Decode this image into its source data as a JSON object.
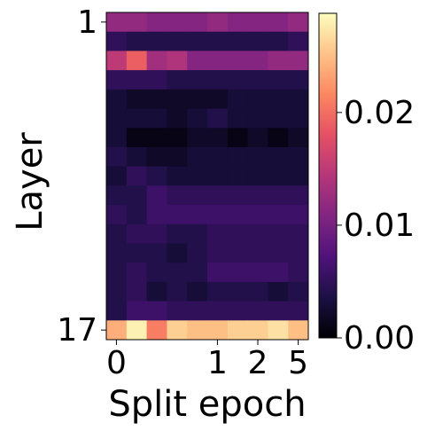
{
  "chart_data": {
    "type": "heatmap",
    "xlabel": "Split epoch",
    "ylabel": "Layer",
    "x_categories": [
      "0",
      null,
      null,
      null,
      null,
      "1",
      null,
      "2",
      null,
      "5"
    ],
    "y_categories": [
      "1",
      null,
      null,
      null,
      null,
      null,
      null,
      null,
      null,
      null,
      null,
      null,
      null,
      null,
      null,
      null,
      "17"
    ],
    "colormap": "magma",
    "zlim": [
      0,
      0.0288
    ],
    "zticks": [
      {
        "value": 0,
        "label": "0.00"
      },
      0.01,
      0.02
    ],
    "values": [
      [
        0.012,
        0.012,
        0.011,
        0.011,
        0.011,
        0.012,
        0.011,
        0.011,
        0.011,
        0.012
      ],
      [
        0.005,
        0.004,
        0.004,
        0.004,
        0.004,
        0.004,
        0.004,
        0.004,
        0.004,
        0.005
      ],
      [
        0.015,
        0.019,
        0.013,
        0.014,
        0.011,
        0.011,
        0.011,
        0.011,
        0.012,
        0.012
      ],
      [
        0.005,
        0.005,
        0.005,
        0.004,
        0.004,
        0.004,
        0.004,
        0.004,
        0.004,
        0.004
      ],
      [
        0.003,
        0.002,
        0.002,
        0.002,
        0.002,
        0.002,
        0.003,
        0.003,
        0.003,
        0.003
      ],
      [
        0.003,
        0.003,
        0.003,
        0.002,
        0.003,
        0.004,
        0.003,
        0.003,
        0.003,
        0.003
      ],
      [
        0.003,
        0.001,
        0.001,
        0.001,
        0.002,
        0.002,
        0.001,
        0.002,
        0.001,
        0.002
      ],
      [
        0.004,
        0.003,
        0.002,
        0.002,
        0.003,
        0.003,
        0.003,
        0.003,
        0.003,
        0.003
      ],
      [
        0.003,
        0.005,
        0.004,
        0.003,
        0.003,
        0.003,
        0.003,
        0.003,
        0.003,
        0.003
      ],
      [
        0.004,
        0.004,
        0.006,
        0.005,
        0.005,
        0.005,
        0.005,
        0.005,
        0.005,
        0.005
      ],
      [
        0.005,
        0.004,
        0.006,
        0.006,
        0.006,
        0.006,
        0.006,
        0.006,
        0.006,
        0.006
      ],
      [
        0.004,
        0.005,
        0.005,
        0.004,
        0.004,
        0.005,
        0.005,
        0.005,
        0.005,
        0.005
      ],
      [
        0.004,
        0.004,
        0.004,
        0.003,
        0.004,
        0.005,
        0.005,
        0.005,
        0.005,
        0.005
      ],
      [
        0.004,
        0.005,
        0.004,
        0.004,
        0.004,
        0.006,
        0.006,
        0.006,
        0.006,
        0.005
      ],
      [
        0.004,
        0.005,
        0.003,
        0.004,
        0.003,
        0.004,
        0.004,
        0.004,
        0.003,
        0.004
      ],
      [
        0.004,
        0.006,
        0.006,
        0.005,
        0.005,
        0.005,
        0.005,
        0.005,
        0.005,
        0.005
      ],
      [
        0.024,
        0.028,
        0.021,
        0.026,
        0.025,
        0.025,
        0.026,
        0.026,
        0.027,
        0.025
      ]
    ]
  }
}
